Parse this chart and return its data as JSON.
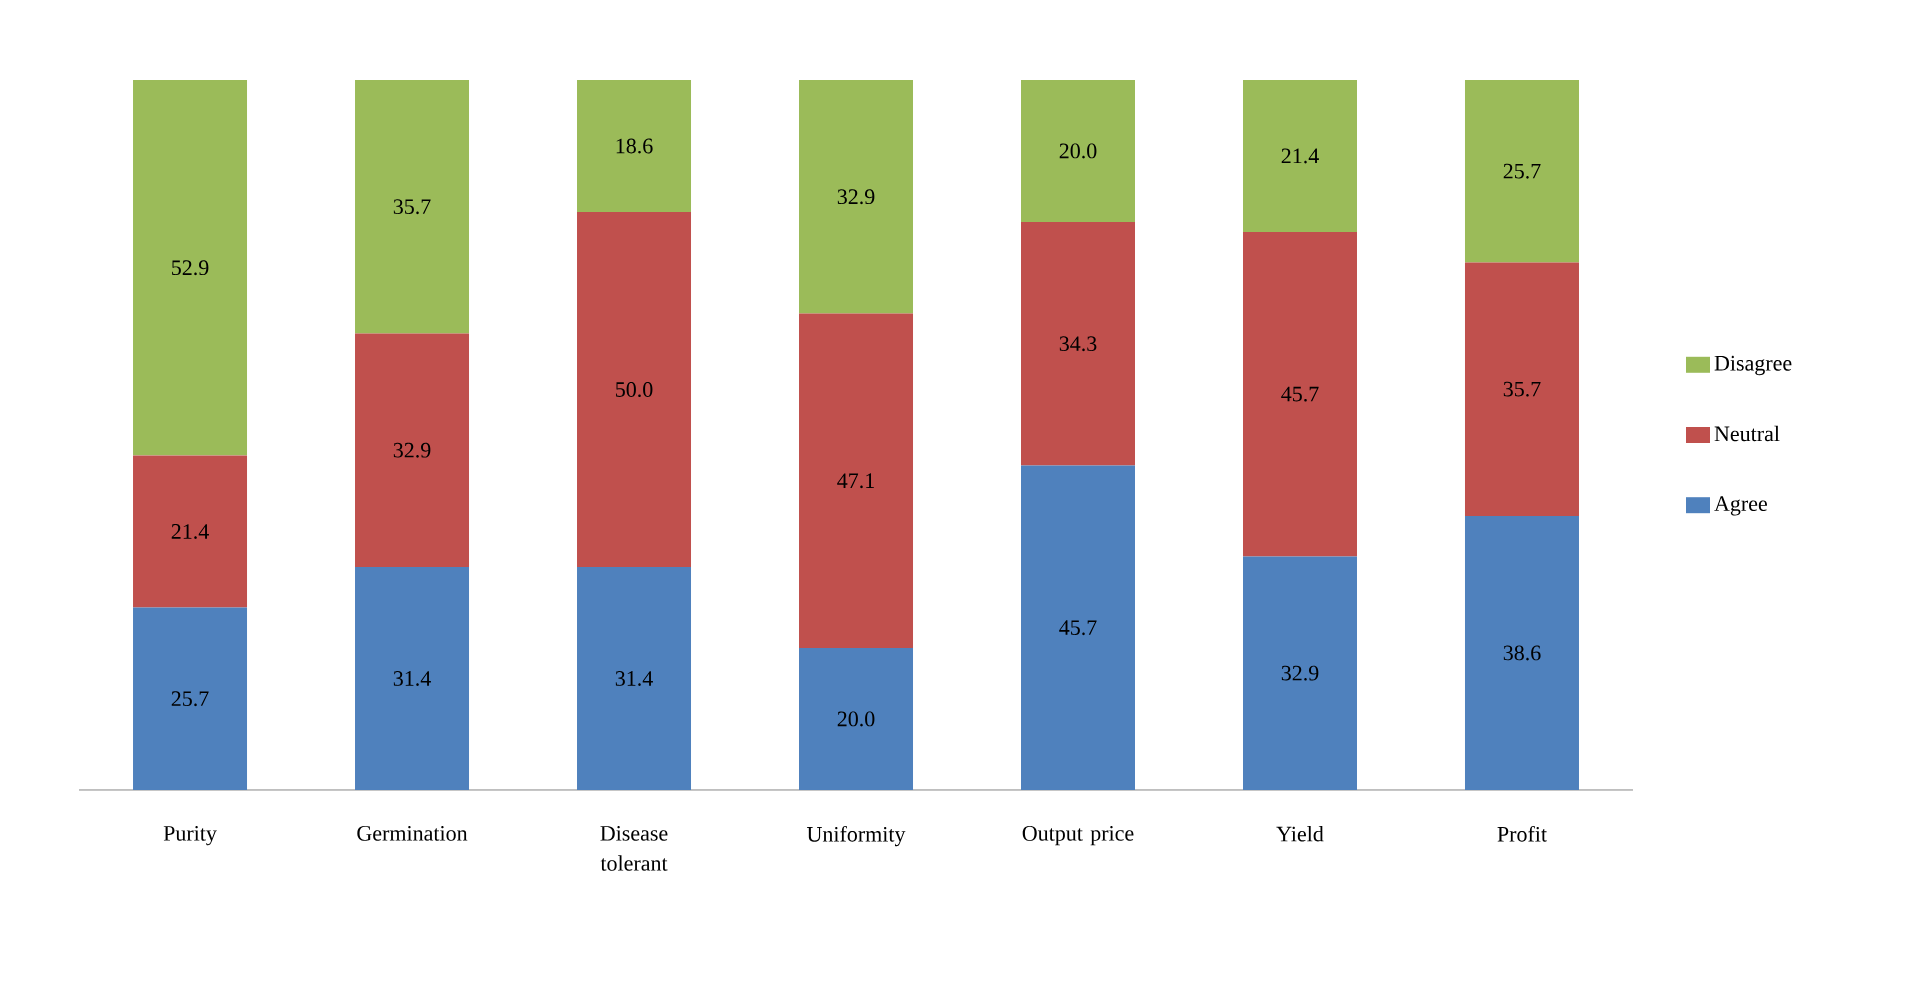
{
  "chart_data": {
    "type": "bar",
    "stacked": true,
    "legend": "right",
    "tick_labels": "x",
    "categories": [
      "Purity",
      "Germination",
      "Disease tolerant",
      "Uniformity",
      "Output price",
      "Yield",
      "Profit"
    ],
    "series": [
      {
        "name": "Agree",
        "color": "#4f81bd",
        "values": [
          25.7,
          31.4,
          31.4,
          20.0,
          45.7,
          32.9,
          38.6
        ],
        "value_labels": [
          "25.7",
          "31.4",
          "31.4",
          "20.0",
          "45.7",
          "32.9",
          "38.6"
        ]
      },
      {
        "name": "Neutral",
        "color": "#c0504d",
        "values": [
          21.4,
          32.9,
          50.0,
          47.1,
          34.3,
          45.7,
          35.7
        ],
        "value_labels": [
          "21.4",
          "32.9",
          "50.0",
          "47.1",
          "34.3",
          "45.7",
          "35.7"
        ]
      },
      {
        "name": "Disagree",
        "color": "#9bbb59",
        "values": [
          52.9,
          35.7,
          18.6,
          32.9,
          20.0,
          21.4,
          25.7
        ],
        "value_labels": [
          "52.9",
          "35.7",
          "18.6",
          "32.9",
          "20.0",
          "21.4",
          "25.7"
        ]
      }
    ]
  }
}
